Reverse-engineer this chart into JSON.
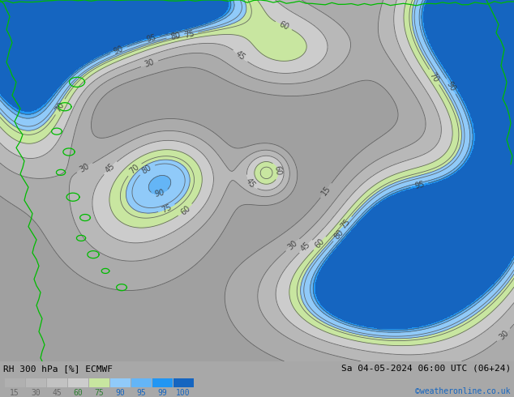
{
  "title_left": "RH 300 hPa [%] ECMWF",
  "title_right": "Sa 04-05-2024 06:00 UTC (06+24)",
  "credit": "©weatheronline.co.uk",
  "legend_values": [
    15,
    30,
    45,
    60,
    75,
    90,
    95,
    99,
    100
  ],
  "legend_colors": [
    "#b0b0b0",
    "#b8b8b8",
    "#c2c2c2",
    "#cccccc",
    "#c8e6a0",
    "#90caf9",
    "#64b5f6",
    "#2196f3",
    "#1565c0"
  ],
  "bg_color": "#a8a8a8",
  "fig_width": 6.34,
  "fig_height": 4.9,
  "dpi": 100
}
